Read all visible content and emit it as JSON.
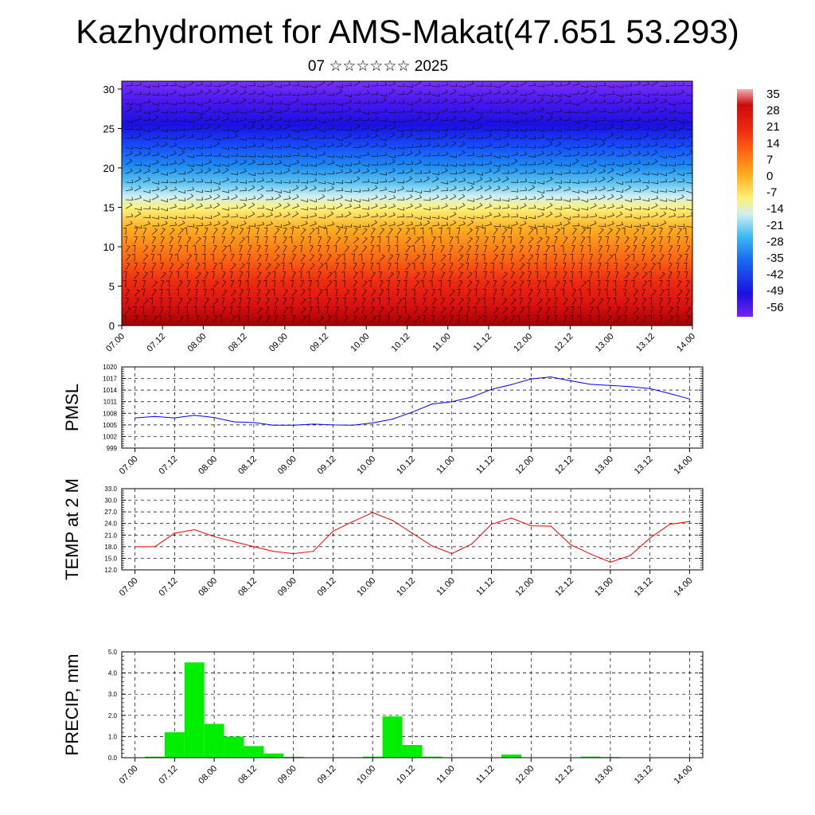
{
  "title": "Kazhydromet for AMS-Makat(47.651 53.293)",
  "subtitle": "07 ☆☆☆☆☆☆ 2025",
  "colors": {
    "pmsl_line": "#0000ff",
    "temp_line": "#ff0000",
    "precip_bar": "#00ee00",
    "grid": "#000000"
  },
  "chart_data": [
    {
      "type": "heatmap",
      "name_hint": "cross-section",
      "x_ticklabels": [
        "07.00",
        "07.12",
        "08.00",
        "08.12",
        "09.00",
        "09.12",
        "10.00",
        "10.12",
        "11.00",
        "11.12",
        "12.00",
        "12.12",
        "13.00",
        "13.12",
        "14.00"
      ],
      "xlim": [
        0,
        84
      ],
      "ylim": [
        0,
        31
      ],
      "y_ticklabels": [
        "0",
        "5",
        "10",
        "15",
        "20",
        "25",
        "30"
      ],
      "y_ticks": [
        0,
        5,
        10,
        15,
        20,
        25,
        30
      ],
      "colorbar": {
        "labels": [
          "35",
          "28",
          "21",
          "14",
          "7",
          "0",
          "-7",
          "-14",
          "-21",
          "-28",
          "-35",
          "-42",
          "-49",
          "-56"
        ],
        "range": [
          -60,
          38
        ]
      },
      "overlay": "wind barbs"
    },
    {
      "type": "line",
      "ylabel": "PMSL",
      "y_ticklabels": [
        "999",
        "1002",
        "1005",
        "1008",
        "1011",
        "1014",
        "1017",
        "1020"
      ],
      "ylim": [
        999,
        1020
      ],
      "x_ticklabels": [
        "07.00",
        "07.12",
        "08.00",
        "08.12",
        "09.00",
        "09.12",
        "10.00",
        "10.12",
        "11.00",
        "11.12",
        "12.00",
        "12.12",
        "13.00",
        "13.12",
        "14.00"
      ],
      "xlim": [
        -2,
        86
      ],
      "series": [
        {
          "x": [
            0,
            3,
            6,
            9,
            12,
            15,
            18,
            21,
            24,
            27,
            30,
            33,
            36,
            39,
            42,
            45,
            48,
            51,
            54,
            57,
            60,
            63,
            66,
            69,
            72,
            75,
            78,
            81,
            84
          ],
          "values": [
            1006.8,
            1007.2,
            1006.8,
            1007.5,
            1006.9,
            1005.8,
            1005.6,
            1004.9,
            1004.9,
            1005.2,
            1005.0,
            1004.9,
            1005.5,
            1006.5,
            1008.3,
            1010.4,
            1011.0,
            1012.2,
            1014.2,
            1015.4,
            1016.9,
            1017.4,
            1016.4,
            1015.5,
            1015.2,
            1014.9,
            1014.4,
            1013.1,
            1011.7
          ]
        }
      ]
    },
    {
      "type": "line",
      "ylabel": "TEMP at 2 M",
      "y_ticklabels": [
        "12.0",
        "15.0",
        "18.0",
        "21.0",
        "24.0",
        "27.0",
        "30.0",
        "33.0"
      ],
      "ylim": [
        12,
        33
      ],
      "x_ticklabels": [
        "07.00",
        "07.12",
        "08.00",
        "08.12",
        "09.00",
        "09.12",
        "10.00",
        "10.12",
        "11.00",
        "11.12",
        "12.00",
        "12.12",
        "13.00",
        "13.12",
        "14.00"
      ],
      "xlim": [
        -2,
        86
      ],
      "series": [
        {
          "x": [
            0,
            3,
            6,
            9,
            12,
            15,
            18,
            21,
            24,
            27,
            30,
            33,
            36,
            39,
            42,
            45,
            48,
            51,
            54,
            57,
            60,
            63,
            66,
            69,
            72,
            75,
            78,
            81,
            84
          ],
          "values": [
            18.0,
            18.0,
            21.5,
            22.4,
            20.6,
            19.3,
            18.0,
            16.8,
            16.2,
            16.8,
            22.0,
            24.5,
            26.8,
            24.8,
            21.5,
            18.2,
            16.2,
            18.7,
            23.8,
            25.4,
            23.4,
            23.3,
            18.5,
            16.1,
            14.0,
            15.7,
            20.2,
            23.8,
            24.5
          ]
        }
      ]
    },
    {
      "type": "bar",
      "ylabel": "PRECIP, mm",
      "y_ticklabels": [
        "0.0",
        "1.0",
        "2.0",
        "3.0",
        "4.0",
        "5.0"
      ],
      "ylim": [
        0,
        5
      ],
      "x_ticklabels": [
        "07.00",
        "07.12",
        "08.00",
        "08.12",
        "09.00",
        "09.12",
        "10.00",
        "10.12",
        "11.00",
        "11.12",
        "12.00",
        "12.12",
        "13.00",
        "13.12",
        "14.00"
      ],
      "xlim": [
        -2,
        86
      ],
      "series": [
        {
          "x": [
            3,
            6,
            9,
            12,
            15,
            18,
            21,
            24,
            36,
            39,
            42,
            45,
            57,
            69,
            72
          ],
          "values": [
            0.05,
            1.2,
            4.5,
            1.6,
            1.0,
            0.55,
            0.2,
            0.04,
            0.05,
            1.95,
            0.6,
            0.05,
            0.15,
            0.05,
            0.03
          ]
        }
      ]
    }
  ]
}
